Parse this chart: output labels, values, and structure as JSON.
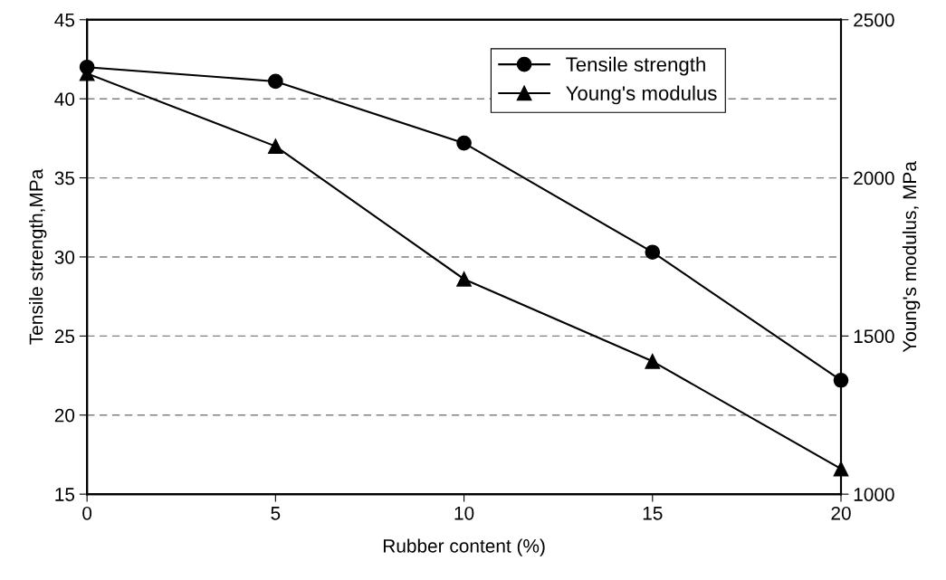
{
  "chart_data": {
    "type": "line",
    "xlabel": "Rubber content (%)",
    "ylabel": "Tensile strength,MPa",
    "y2label": "Young's modulus, MPa",
    "x": [
      0,
      5,
      10,
      15,
      20
    ],
    "series": [
      {
        "name": "Tensile strength",
        "color": "#000000",
        "marker": "circle",
        "values": [
          42.0,
          41.1,
          37.2,
          30.3,
          22.2
        ]
      },
      {
        "name": "Young's modulus",
        "color": "#000000",
        "marker": "triangle",
        "axis": "y2",
        "values": [
          2330,
          2100,
          1680,
          1420,
          1080
        ]
      }
    ],
    "xlim": [
      0,
      20
    ],
    "xticks": [
      0,
      5,
      10,
      15,
      20
    ],
    "ylim": [
      15,
      45
    ],
    "yticks": [
      15,
      20,
      25,
      30,
      35,
      40,
      45
    ],
    "y2lim": [
      1000,
      2500
    ],
    "y2ticks": [
      1000,
      1500,
      2000,
      2500
    ],
    "grid": "y",
    "legend": "top right",
    "line_style": "solid"
  }
}
